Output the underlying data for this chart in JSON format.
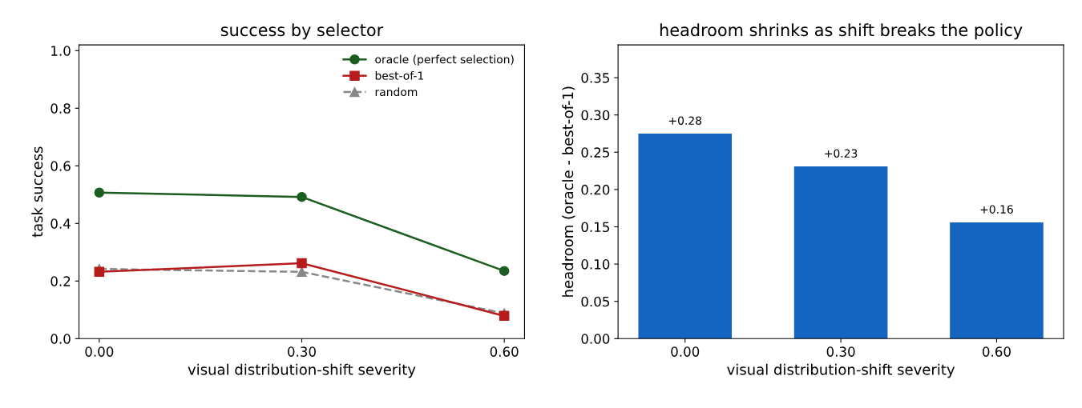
{
  "chart_data": [
    {
      "type": "line",
      "title": "success by selector",
      "xlabel": "visual distribution-shift severity",
      "ylabel": "task success",
      "x": [
        0,
        0.3,
        0.6
      ],
      "xlim": [
        -0.03,
        0.63
      ],
      "xticks": [
        {
          "value": 0,
          "label": "0.00"
        },
        {
          "value": 0.3,
          "label": "0.30"
        },
        {
          "value": 0.6,
          "label": "0.60"
        }
      ],
      "ylim": [
        0,
        1.02
      ],
      "yticks": [
        {
          "value": 0,
          "label": "0.0"
        },
        {
          "value": 0.2,
          "label": "0.2"
        },
        {
          "value": 0.4,
          "label": "0.4"
        },
        {
          "value": 0.6,
          "label": "0.6"
        },
        {
          "value": 0.8,
          "label": "0.8"
        },
        {
          "value": 1.0,
          "label": "1.0"
        }
      ],
      "legend": "top right",
      "grid": false,
      "series": [
        {
          "name": "oracle (perfect selection)",
          "color": "#1b5e20",
          "values": [
            0.507,
            0.492,
            0.235
          ],
          "marker": "circle",
          "line_style": "solid"
        },
        {
          "name": "best-of-1",
          "color": "#b71c1c",
          "values": [
            0.232,
            0.262,
            0.079
          ],
          "marker": "square",
          "line_style": "solid"
        },
        {
          "name": "random",
          "color": "#888888",
          "values": [
            0.242,
            0.232,
            0.088
          ],
          "marker": "triangle",
          "line_style": "dashed"
        }
      ]
    },
    {
      "type": "bar",
      "title": "headroom shrinks as shift breaks the policy",
      "xlabel": "visual distribution-shift severity",
      "ylabel": "headroom (oracle - best-of-1)",
      "categories": [
        "0.00",
        "0.30",
        "0.60"
      ],
      "values": [
        0.275,
        0.231,
        0.156
      ],
      "value_labels": [
        "+0.28",
        "+0.23",
        "+0.16"
      ],
      "color": "#1565c0",
      "ylim": [
        0,
        0.394
      ],
      "yticks": [
        {
          "value": 0,
          "label": "0.00"
        },
        {
          "value": 0.05,
          "label": "0.05"
        },
        {
          "value": 0.1,
          "label": "0.10"
        },
        {
          "value": 0.15,
          "label": "0.15"
        },
        {
          "value": 0.2,
          "label": "0.20"
        },
        {
          "value": 0.25,
          "label": "0.25"
        },
        {
          "value": 0.3,
          "label": "0.30"
        },
        {
          "value": 0.35,
          "label": "0.35"
        }
      ],
      "grid": false,
      "legend": false
    }
  ]
}
